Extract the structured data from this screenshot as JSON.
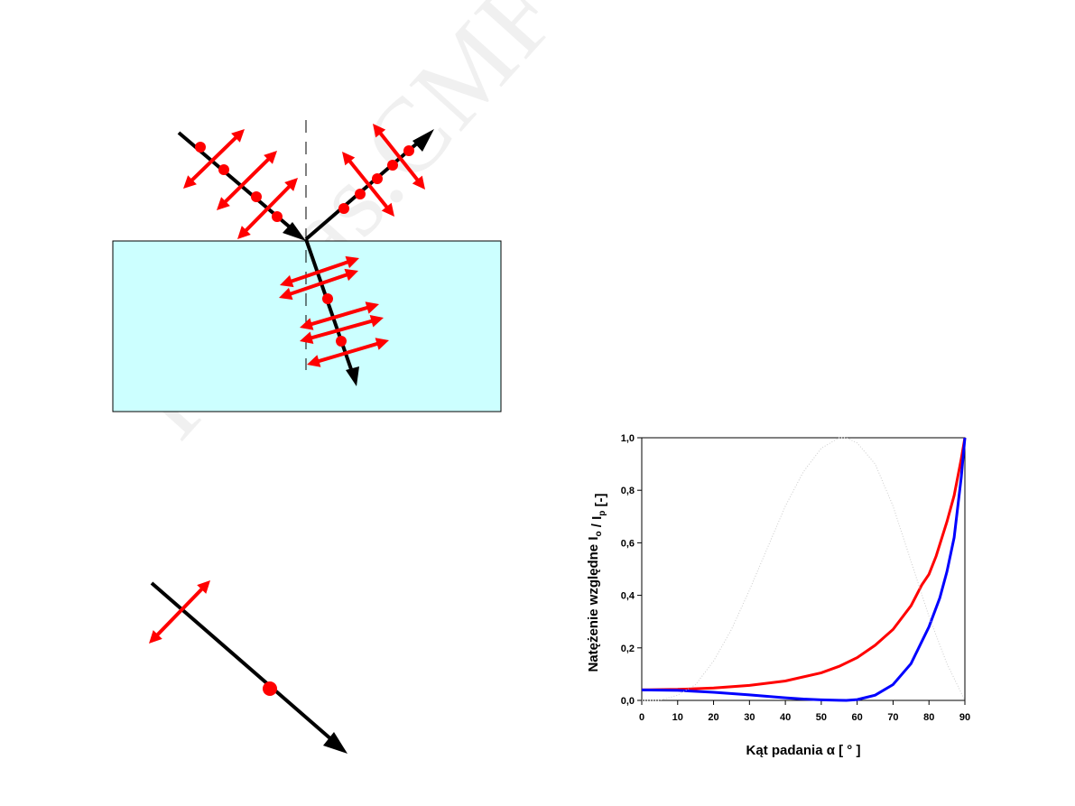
{
  "watermark": "K.Kras.CMF PŁ",
  "colors": {
    "medium_fill": "#ccffff",
    "polarization": "#ff0000",
    "ray": "#000000",
    "series_parallel": "#0000ff",
    "series_perpendicular": "#ff0000",
    "series_faint": "#cccccc"
  },
  "icons": [
    "arrow-head-icon",
    "polarization-dot-icon",
    "double-arrow-icon"
  ],
  "chart_data": {
    "type": "line",
    "xlabel": "Kąt padania α [ ° ]",
    "ylabel": "Natężenie względne  I",
    "ylabel_sub1": "o",
    "ylabel_mid": " / I",
    "ylabel_sub2": "p",
    "ylabel_end": "  [-]",
    "xlim": [
      0,
      90
    ],
    "ylim": [
      0,
      1
    ],
    "x_ticks": [
      "0",
      "10",
      "20",
      "30",
      "40",
      "50",
      "60",
      "70",
      "80",
      "90"
    ],
    "y_ticks": [
      "0,0",
      "0,2",
      "0,4",
      "0,6",
      "0,8",
      "1,0"
    ],
    "grid": false,
    "series": [
      {
        "color": "#ff0000",
        "x": [
          0,
          10,
          20,
          30,
          40,
          50,
          55,
          60,
          65,
          70,
          75,
          78,
          80,
          82,
          85,
          87,
          89,
          90
        ],
        "y": [
          0.04,
          0.042,
          0.047,
          0.057,
          0.074,
          0.105,
          0.13,
          0.163,
          0.21,
          0.27,
          0.36,
          0.44,
          0.48,
          0.55,
          0.68,
          0.78,
          0.92,
          1.0
        ]
      },
      {
        "color": "#0000ff",
        "x": [
          0,
          10,
          20,
          30,
          40,
          45,
          50,
          55,
          57,
          60,
          65,
          70,
          75,
          80,
          83,
          85,
          87,
          89,
          90
        ],
        "y": [
          0.04,
          0.038,
          0.031,
          0.021,
          0.01,
          0.005,
          0.002,
          0.0003,
          0,
          0.003,
          0.02,
          0.06,
          0.14,
          0.28,
          0.39,
          0.49,
          0.62,
          0.85,
          1.0
        ]
      },
      {
        "color": "#cccccc",
        "x": [
          0,
          5,
          10,
          15,
          20,
          25,
          30,
          35,
          40,
          45,
          50,
          55,
          57,
          60,
          65,
          70,
          75,
          80,
          85,
          90
        ],
        "y": [
          0,
          0.0,
          0.02,
          0.06,
          0.15,
          0.27,
          0.42,
          0.58,
          0.74,
          0.87,
          0.96,
          1.0,
          1.0,
          0.98,
          0.9,
          0.74,
          0.53,
          0.32,
          0.14,
          0.0
        ]
      }
    ]
  }
}
